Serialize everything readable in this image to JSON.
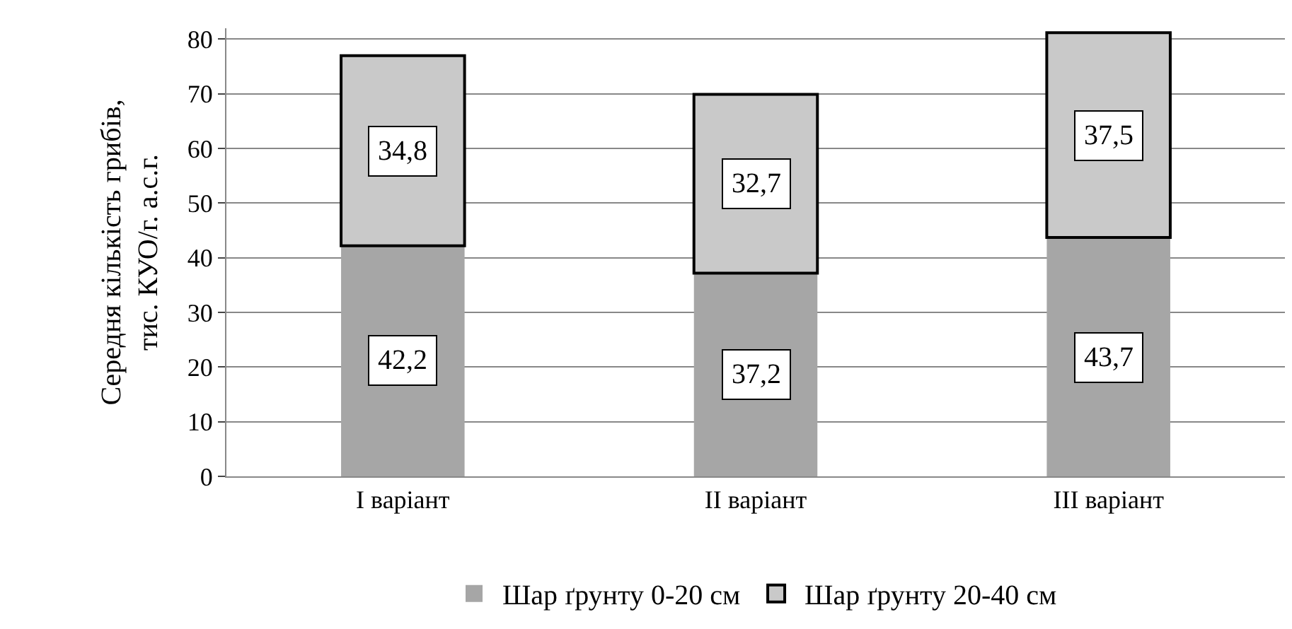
{
  "chart_data": {
    "type": "bar",
    "stacked": true,
    "ylabel": "Середня кількість грибів,\nтис. КУО/г. а.с.г.",
    "categories": [
      "I варіант",
      "II варіант",
      "III варіант"
    ],
    "series": [
      {
        "name": "Шар ґрунту 0-20 см",
        "color": "#a6a6a6",
        "values": [
          42.2,
          37.2,
          43.7
        ],
        "value_labels": [
          "42,2",
          "37,2",
          "43,7"
        ]
      },
      {
        "name": "Шар ґрунту 20-40 см",
        "color": "#c9c9c9",
        "values": [
          34.8,
          32.7,
          37.5
        ],
        "value_labels": [
          "34,8",
          "32,7",
          "37,5"
        ]
      }
    ],
    "ylim": [
      0,
      82
    ],
    "yticks": [
      0,
      10,
      20,
      30,
      40,
      50,
      60,
      70,
      80
    ],
    "grid": "y",
    "legend": "bottom"
  }
}
